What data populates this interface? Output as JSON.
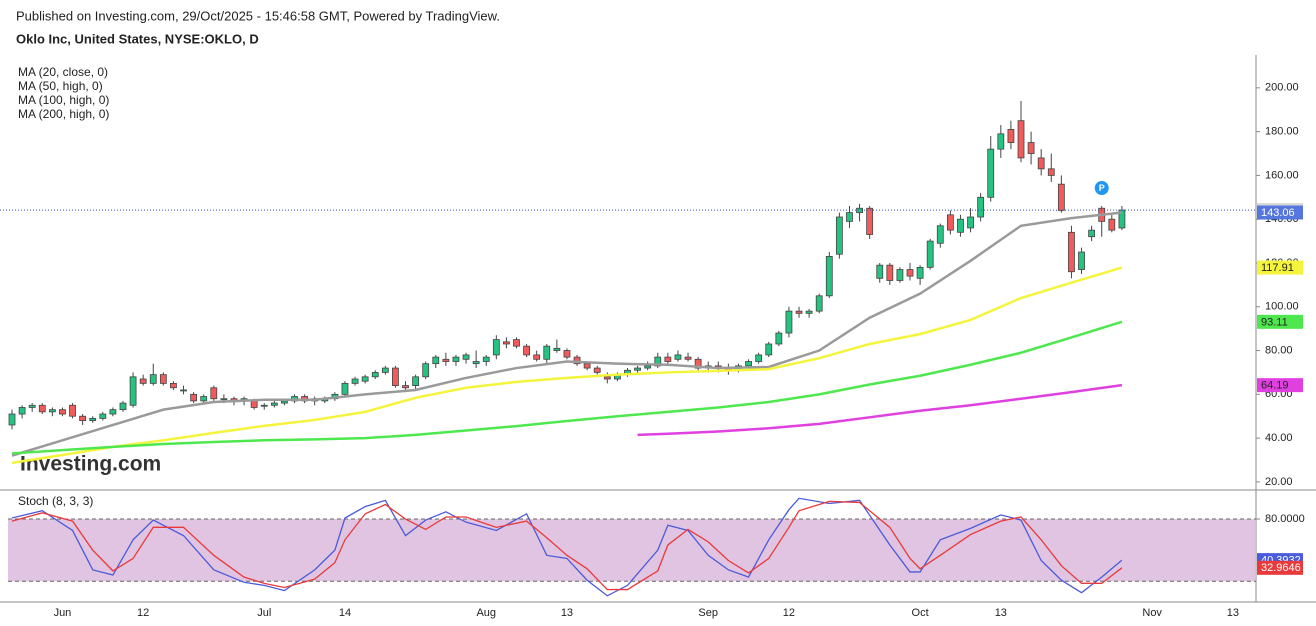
{
  "header": {
    "published": "Published on Investing.com, 29/Oct/2025 - 15:46:58 GMT, Powered by TradingView.",
    "symbol": "Oklo Inc, United States, NYSE:OKLO, D",
    "watermark": "Investing.com"
  },
  "chart_data": [
    {
      "type": "candlestick",
      "categories": [
        null,
        null,
        null,
        null,
        null,
        "Jun",
        null,
        null,
        null,
        null,
        null,
        null,
        null,
        "12",
        null,
        null,
        null,
        null,
        null,
        null,
        null,
        null,
        null,
        null,
        null,
        "Jul",
        null,
        null,
        null,
        null,
        null,
        null,
        null,
        "14",
        null,
        null,
        null,
        null,
        null,
        null,
        null,
        null,
        null,
        null,
        null,
        null,
        null,
        "Aug",
        null,
        null,
        null,
        null,
        null,
        null,
        null,
        "13",
        null,
        null,
        null,
        null,
        null,
        null,
        null,
        null,
        null,
        null,
        null,
        null,
        null,
        "Sep",
        null,
        null,
        null,
        null,
        null,
        null,
        null,
        "12",
        null,
        null,
        null,
        null,
        null,
        null,
        null,
        null,
        null,
        null,
        null,
        null,
        "Oct",
        null,
        null,
        null,
        null,
        null,
        null,
        null,
        "13",
        null,
        null,
        null,
        null,
        null,
        null,
        null,
        null,
        null,
        null,
        null,
        null,
        null,
        null,
        "Nov",
        null,
        null,
        null,
        null,
        null,
        null,
        null,
        "13"
      ],
      "open": [
        46,
        51,
        54,
        55,
        52,
        53,
        55,
        50,
        48,
        49,
        51,
        53,
        55,
        67,
        65,
        69,
        65,
        62,
        60,
        57,
        63,
        58,
        58,
        57,
        57,
        55,
        55,
        56,
        57,
        59,
        57,
        57,
        58,
        60,
        65,
        66,
        68,
        70,
        72,
        64,
        64,
        68,
        74,
        76,
        75,
        76,
        74,
        75,
        78,
        84,
        85,
        82,
        78,
        76,
        80,
        80,
        77,
        74,
        72,
        68,
        67,
        69,
        71,
        72,
        73,
        77,
        76,
        77,
        76,
        72,
        73,
        72,
        71,
        73,
        75,
        78,
        83,
        88,
        98,
        97,
        98,
        105,
        124,
        139,
        143,
        145,
        113,
        119,
        112,
        117,
        113,
        118,
        129,
        142,
        134,
        136,
        141,
        150,
        172,
        181,
        185,
        175,
        168,
        163,
        156,
        134,
        117,
        132,
        145,
        140,
        136,
        null,
        null,
        null,
        null,
        null,
        null,
        null,
        null,
        null,
        null,
        null
      ],
      "high": [
        53,
        55,
        56,
        56,
        54,
        54,
        56,
        51,
        50,
        52,
        54,
        57,
        70,
        69,
        74,
        70,
        66,
        64,
        61,
        60,
        64,
        60,
        59,
        59,
        58,
        56,
        57,
        58,
        60,
        60,
        59,
        59,
        61,
        66,
        68,
        69,
        71,
        73,
        73,
        66,
        69,
        75,
        78,
        79,
        78,
        79,
        80,
        78,
        87,
        86,
        86,
        83,
        80,
        83,
        85,
        81,
        78,
        75,
        73,
        70,
        70,
        72,
        73,
        75,
        79,
        79,
        80,
        79,
        77,
        75,
        75,
        74,
        74,
        76,
        79,
        84,
        89,
        100,
        100,
        99,
        106,
        125,
        143,
        146,
        147,
        146,
        120,
        120,
        118,
        120,
        119,
        131,
        138,
        144,
        142,
        145,
        152,
        178,
        183,
        185,
        194,
        180,
        172,
        170,
        160,
        137,
        127,
        137,
        146,
        142,
        146,
        null,
        null,
        null,
        null,
        null,
        null,
        null,
        null,
        null,
        null,
        null
      ],
      "low": [
        44,
        49,
        52,
        51,
        50,
        50,
        49,
        46,
        47,
        48,
        50,
        52,
        54,
        64,
        64,
        64,
        62,
        60,
        56,
        56,
        57,
        56,
        55,
        55,
        53,
        53,
        54,
        55,
        56,
        56,
        55,
        56,
        57,
        59,
        64,
        65,
        67,
        69,
        63,
        61,
        62,
        67,
        72,
        73,
        73,
        74,
        72,
        73,
        76,
        81,
        81,
        77,
        75,
        74,
        79,
        76,
        73,
        71,
        69,
        65,
        66,
        68,
        70,
        71,
        72,
        74,
        75,
        75,
        71,
        70,
        70,
        69,
        70,
        72,
        74,
        77,
        82,
        86,
        95,
        95,
        97,
        104,
        122,
        136,
        139,
        131,
        111,
        110,
        111,
        112,
        110,
        117,
        127,
        133,
        132,
        134,
        139,
        148,
        168,
        172,
        166,
        165,
        160,
        157,
        143,
        113,
        115,
        130,
        132,
        134,
        135,
        null,
        null,
        null,
        null,
        null,
        null,
        null,
        null,
        null,
        null,
        null
      ],
      "close": [
        51,
        54,
        55,
        52,
        53,
        51,
        50,
        48,
        49,
        51,
        53,
        56,
        68,
        65,
        69,
        65,
        63,
        62,
        57,
        59,
        58,
        58,
        57,
        58,
        54,
        55,
        56,
        57,
        59,
        57,
        58,
        58,
        60,
        65,
        67,
        68,
        70,
        72,
        64,
        63,
        68,
        74,
        77,
        75,
        77,
        78,
        75,
        77,
        85,
        83,
        82,
        78,
        76,
        82,
        81,
        77,
        74,
        72,
        70,
        67,
        69,
        71,
        72,
        73,
        77,
        75,
        78,
        76,
        72,
        73,
        72,
        71,
        73,
        75,
        78,
        83,
        88,
        98,
        97,
        98,
        105,
        123,
        141,
        143,
        145,
        133,
        119,
        112,
        117,
        114,
        118,
        130,
        137,
        135,
        140,
        141,
        150,
        172,
        179,
        175,
        168,
        170,
        163,
        160,
        144,
        116,
        125,
        135,
        139,
        135,
        144.16,
        null,
        null,
        null,
        null,
        null,
        null,
        null,
        null,
        null,
        null,
        null
      ],
      "up_color": "#26c281",
      "down_color": "#f05b5b",
      "price_line_color": "#2d4fb8",
      "last_badge_color": "#d8d8d8",
      "series": [
        {
          "name": "MA (20, close, 0)",
          "color": "#9a9a9a",
          "badge_color": "#5577dd",
          "x": [
            0,
            5,
            10,
            15,
            20,
            25,
            30,
            35,
            40,
            45,
            50,
            55,
            60,
            65,
            70,
            75,
            80,
            85,
            90,
            95,
            100,
            105,
            110
          ],
          "values": [
            32,
            39,
            46,
            53,
            56.5,
            57.5,
            57.5,
            60,
            62,
            67.5,
            72,
            75,
            74,
            73.5,
            72,
            72.5,
            80,
            95,
            106,
            121,
            137,
            140.5,
            143.06
          ]
        },
        {
          "name": "MA (50, high, 0)",
          "color": "#f4f43c",
          "badge_color": "#f4f43c",
          "x": [
            0,
            5,
            10,
            15,
            20,
            25,
            30,
            35,
            40,
            45,
            50,
            55,
            60,
            65,
            70,
            75,
            80,
            85,
            90,
            95,
            100,
            105,
            110
          ],
          "values": [
            28.7,
            32.3,
            36,
            39,
            42.4,
            45.6,
            48.3,
            52,
            58.4,
            63,
            65.7,
            67.5,
            69,
            70,
            70.7,
            71.5,
            76.5,
            83,
            87.5,
            94,
            104,
            111,
            117.91
          ]
        },
        {
          "name": "MA (100, high, 0)",
          "color": "#4ee84e",
          "badge_color": "#4ee84e",
          "x": [
            0,
            5,
            10,
            15,
            20,
            25,
            30,
            35,
            40,
            45,
            50,
            55,
            60,
            65,
            70,
            75,
            80,
            85,
            90,
            95,
            100,
            105,
            110
          ],
          "values": [
            33,
            34.5,
            36,
            37.3,
            38.2,
            39,
            39.4,
            40,
            41.5,
            43.5,
            45.5,
            47.8,
            50,
            52,
            54,
            56.5,
            60,
            64.5,
            68.5,
            73.5,
            79,
            86,
            93.11
          ]
        },
        {
          "name": "MA (200, high, 0)",
          "color": "#e040e0",
          "badge_color": "#e040e0",
          "x": [
            62,
            65,
            70,
            75,
            80,
            85,
            90,
            95,
            100,
            105,
            110
          ],
          "values": [
            41.5,
            42,
            43,
            44.5,
            46.5,
            49.5,
            52.5,
            55,
            58,
            61,
            64.19
          ]
        }
      ],
      "annotation": {
        "text": "P",
        "x": 108,
        "color": "#2196f3"
      },
      "ylim": [
        16.3,
        215
      ],
      "yticks": [
        {
          "value": 20,
          "label": "20.00"
        },
        {
          "value": 40,
          "label": "40.00"
        },
        {
          "value": 60,
          "label": "60.00"
        },
        {
          "value": 80,
          "label": "80.00"
        },
        {
          "value": 100,
          "label": "100.00"
        },
        {
          "value": 120,
          "label": "120.00"
        },
        {
          "value": 140,
          "label": "140.00"
        },
        {
          "value": 160,
          "label": "160.00"
        },
        {
          "value": 180,
          "label": "180.00"
        },
        {
          "value": 200,
          "label": "200.00"
        }
      ]
    },
    {
      "type": "line",
      "title": "Stoch (8, 3, 3)",
      "x": [
        0,
        3,
        6,
        8,
        10,
        12,
        14,
        17,
        20,
        23,
        25,
        27,
        30,
        32,
        33,
        35,
        37,
        39,
        41,
        43,
        45,
        48,
        51,
        53,
        55,
        57,
        59,
        61,
        64,
        65,
        67,
        69,
        71,
        73,
        75,
        77,
        78,
        81,
        84,
        87,
        89,
        90,
        92,
        95,
        98,
        100,
        102,
        104,
        106,
        108,
        110
      ],
      "series": [
        {
          "color": "#4a5bdb",
          "values": [
            81,
            88,
            69,
            31,
            26,
            60,
            79,
            64,
            31,
            19,
            16,
            11,
            31,
            50,
            81,
            92,
            98,
            64,
            79,
            87,
            77,
            69,
            85,
            45,
            42,
            21,
            6,
            16,
            50,
            74,
            69,
            45,
            31,
            24,
            60,
            89,
            100,
            95,
            98,
            55,
            29,
            29,
            60,
            71,
            84,
            79,
            40,
            21,
            9,
            24,
            40.3932
          ]
        },
        {
          "color": "#e83a3a",
          "values": [
            78,
            86,
            78,
            50,
            30,
            42,
            72,
            72,
            45,
            24,
            18,
            14,
            22,
            38,
            60,
            85,
            94,
            80,
            70,
            82,
            82,
            72,
            78,
            62,
            45,
            32,
            12,
            12,
            30,
            55,
            70,
            58,
            40,
            28,
            42,
            72,
            88,
            97,
            96,
            72,
            42,
            32,
            45,
            65,
            78,
            82,
            60,
            35,
            18,
            18,
            32.9646
          ]
        }
      ],
      "bands": [
        20,
        80
      ],
      "band_color": "#dcbadc",
      "ylim": [
        0,
        108
      ],
      "yticks": [
        {
          "value": 80,
          "label": "80.0000"
        }
      ]
    }
  ]
}
